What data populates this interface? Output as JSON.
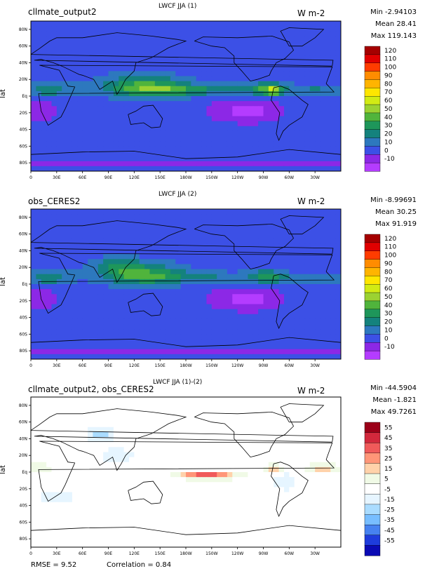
{
  "chart_data": [
    {
      "type": "heatmap",
      "case_name": "cllmate_output2",
      "title": "LWCF JJA (1)",
      "units": "W m-2",
      "stats": {
        "min": "Min -2.94103",
        "mean": "Mean 28.41",
        "max": "Max 119.143"
      },
      "ylabel": "lat",
      "y_ticks": [
        "80N",
        "60N",
        "40N",
        "20N",
        "Eq",
        "20S",
        "40S",
        "60S",
        "80S"
      ],
      "x_ticks": [
        "0",
        "30E",
        "60E",
        "90E",
        "120E",
        "150E",
        "180W",
        "150W",
        "120W",
        "90W",
        "60W",
        "30W"
      ],
      "colorbar": {
        "levels": [
          "120",
          "110",
          "100",
          "90",
          "80",
          "70",
          "60",
          "50",
          "40",
          "30",
          "20",
          "10",
          "0",
          "-10"
        ],
        "colors": [
          "#a50000",
          "#e00000",
          "#ff3c00",
          "#ff8c00",
          "#ffb400",
          "#ffe600",
          "#d2eb14",
          "#9bd232",
          "#50b43c",
          "#1e965a",
          "#14827d",
          "#2d78be",
          "#3c50e6",
          "#8c28e6",
          "#b43cff"
        ]
      }
    },
    {
      "type": "heatmap",
      "case_name": "obs_CERES2",
      "title": "LWCF JJA (2)",
      "units": "W m-2",
      "stats": {
        "min": "Min -8.99691",
        "mean": "Mean 30.25",
        "max": "Max 91.919"
      },
      "ylabel": "lat",
      "y_ticks": [
        "80N",
        "60N",
        "40N",
        "20N",
        "Eq",
        "20S",
        "40S",
        "60S",
        "80S"
      ],
      "x_ticks": [
        "0",
        "30E",
        "60E",
        "90E",
        "120E",
        "150E",
        "180W",
        "150W",
        "120W",
        "90W",
        "60W",
        "30W"
      ],
      "colorbar": {
        "levels": [
          "120",
          "110",
          "100",
          "90",
          "80",
          "70",
          "60",
          "50",
          "40",
          "30",
          "20",
          "10",
          "0",
          "-10"
        ],
        "colors": [
          "#a50000",
          "#e00000",
          "#ff3c00",
          "#ff8c00",
          "#ffb400",
          "#ffe600",
          "#d2eb14",
          "#9bd232",
          "#50b43c",
          "#1e965a",
          "#14827d",
          "#2d78be",
          "#3c50e6",
          "#8c28e6",
          "#b43cff"
        ]
      }
    },
    {
      "type": "heatmap",
      "case_name": "cllmate_output2, obs_CERES2",
      "title": "LWCF JJA (1)-(2)",
      "units": "W m-2",
      "stats": {
        "min": "Min -44.5904",
        "mean": "Mean -1.821",
        "max": "Max 49.7261"
      },
      "ylabel": "lat",
      "y_ticks": [
        "80N",
        "60N",
        "40N",
        "20N",
        "Eq",
        "20S",
        "40S",
        "60S",
        "80S"
      ],
      "x_ticks": [
        "0",
        "30E",
        "60E",
        "90E",
        "120E",
        "150E",
        "180W",
        "150W",
        "120W",
        "90W",
        "60W",
        "30W"
      ],
      "colorbar": {
        "levels": [
          "55",
          "45",
          "35",
          "25",
          "15",
          "5",
          "-5",
          "-15",
          "-25",
          "-35",
          "-45",
          "-55"
        ],
        "colors": [
          "#9b0018",
          "#d2283c",
          "#f05a5a",
          "#ff9678",
          "#ffd2aa",
          "#f0fae6",
          "#ffffff",
          "#e6f5ff",
          "#aadcff",
          "#78beff",
          "#4682f0",
          "#1e3cdc",
          "#0a0ab4"
        ]
      },
      "rmse": "RMSE = 9.52",
      "correlation": "Correlation = 0.84"
    }
  ]
}
